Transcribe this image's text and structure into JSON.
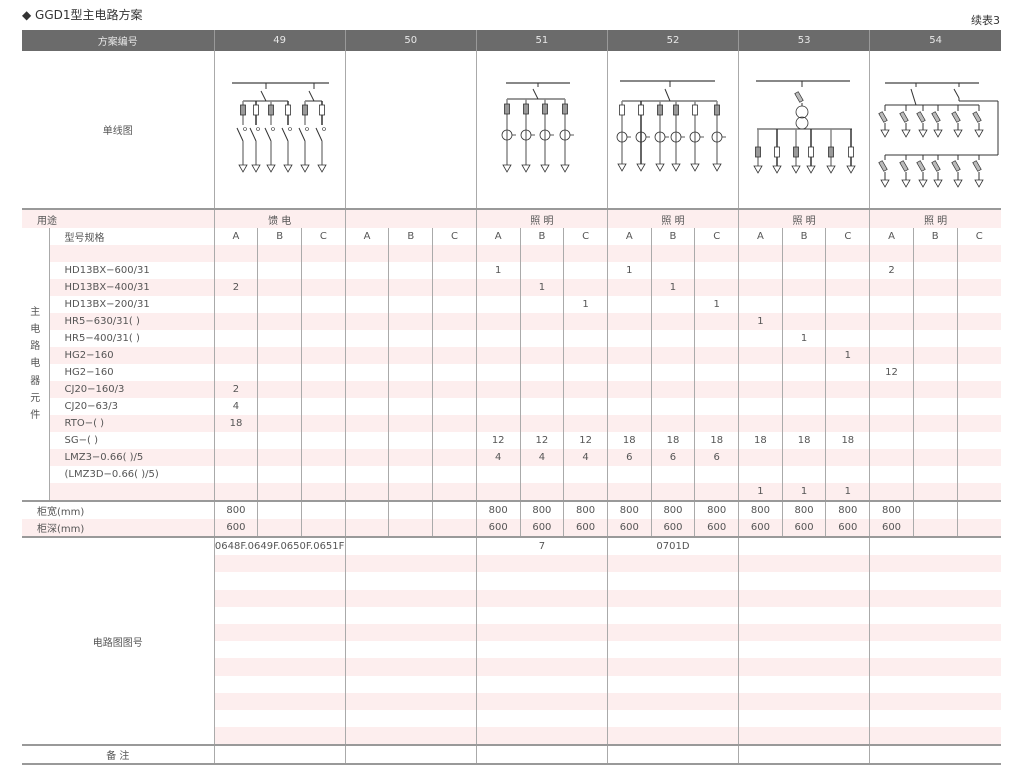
{
  "page": {
    "title": "◆ GGD1型主电路方案",
    "continued": "续表3"
  },
  "labels": {
    "scheme_no": "方案编号",
    "single_line": "单线图",
    "usage": "用途",
    "model_spec": "型号规格",
    "side_group": "主电路电器元件",
    "drawing_no": "电路图图号",
    "remarks": "备 注"
  },
  "schemes": [
    "49",
    "50",
    "51",
    "52",
    "53",
    "54"
  ],
  "usage": [
    "馈 电",
    "",
    "照 明",
    "照 明",
    "照 明",
    "照 明"
  ],
  "sub_columns": [
    "A",
    "B",
    "C"
  ],
  "components": [
    {
      "name": "",
      "values": [
        "",
        "",
        "",
        "",
        "",
        "",
        "",
        "",
        "",
        "",
        "",
        "",
        "",
        "",
        "",
        "",
        "",
        ""
      ]
    },
    {
      "name": "HD13BX−600/31",
      "values": [
        "",
        "",
        "",
        "",
        "",
        "",
        "1",
        "",
        "",
        "1",
        "",
        "",
        "",
        "",
        "",
        "2",
        "",
        ""
      ]
    },
    {
      "name": "HD13BX−400/31",
      "values": [
        "2",
        "",
        "",
        "",
        "",
        "",
        "",
        "1",
        "",
        "",
        "1",
        "",
        "",
        "",
        "",
        "",
        "",
        ""
      ]
    },
    {
      "name": "HD13BX−200/31",
      "values": [
        "",
        "",
        "",
        "",
        "",
        "",
        "",
        "",
        "1",
        "",
        "",
        "1",
        "",
        "",
        "",
        "",
        "",
        ""
      ]
    },
    {
      "name": "HR5−630/31( )",
      "values": [
        "",
        "",
        "",
        "",
        "",
        "",
        "",
        "",
        "",
        "",
        "",
        "",
        "1",
        "",
        "",
        "",
        "",
        ""
      ]
    },
    {
      "name": "HR5−400/31( )",
      "values": [
        "",
        "",
        "",
        "",
        "",
        "",
        "",
        "",
        "",
        "",
        "",
        "",
        "",
        "1",
        "",
        "",
        "",
        ""
      ]
    },
    {
      "name": "HG2−160",
      "values": [
        "",
        "",
        "",
        "",
        "",
        "",
        "",
        "",
        "",
        "",
        "",
        "",
        "",
        "",
        "1",
        "",
        "",
        ""
      ]
    },
    {
      "name": "HG2−160",
      "values": [
        "",
        "",
        "",
        "",
        "",
        "",
        "",
        "",
        "",
        "",
        "",
        "",
        "",
        "",
        "",
        "12",
        "",
        ""
      ]
    },
    {
      "name": "CJ20−160/3",
      "values": [
        "2",
        "",
        "",
        "",
        "",
        "",
        "",
        "",
        "",
        "",
        "",
        "",
        "",
        "",
        "",
        "",
        "",
        ""
      ]
    },
    {
      "name": "CJ20−63/3",
      "values": [
        "4",
        "",
        "",
        "",
        "",
        "",
        "",
        "",
        "",
        "",
        "",
        "",
        "",
        "",
        "",
        "",
        "",
        ""
      ]
    },
    {
      "name": "RTO−( )",
      "values": [
        "18",
        "",
        "",
        "",
        "",
        "",
        "",
        "",
        "",
        "",
        "",
        "",
        "",
        "",
        "",
        "",
        "",
        ""
      ]
    },
    {
      "name": "SG−( )",
      "values": [
        "",
        "",
        "",
        "",
        "",
        "",
        "12",
        "12",
        "12",
        "18",
        "18",
        "18",
        "18",
        "18",
        "18",
        "",
        "",
        ""
      ]
    },
    {
      "name": "LMZ3−0.66( )/5",
      "values": [
        "",
        "",
        "",
        "",
        "",
        "",
        "4",
        "4",
        "4",
        "6",
        "6",
        "6",
        "",
        "",
        "",
        "",
        "",
        ""
      ]
    },
    {
      "name": "(LMZ3D−0.66( )/5)",
      "values": [
        "",
        "",
        "",
        "",
        "",
        "",
        "",
        "",
        "",
        "",
        "",
        "",
        "",
        "",
        "",
        "",
        "",
        ""
      ]
    },
    {
      "name": "",
      "values": [
        "",
        "",
        "",
        "",
        "",
        "",
        "",
        "",
        "",
        "",
        "",
        "",
        "1",
        "1",
        "1",
        "",
        "",
        ""
      ]
    }
  ],
  "dimensions": [
    {
      "name": "柜宽(mm)",
      "values": [
        "800",
        "",
        "",
        "",
        "",
        "",
        "800",
        "800",
        "800",
        "800",
        "800",
        "800",
        "800",
        "800",
        "800",
        "800",
        "",
        ""
      ]
    },
    {
      "name": "柜深(mm)",
      "values": [
        "600",
        "",
        "",
        "",
        "",
        "",
        "600",
        "600",
        "600",
        "600",
        "600",
        "600",
        "600",
        "600",
        "600",
        "600",
        "",
        ""
      ]
    }
  ],
  "drawing_numbers": [
    "0648F.0649F.0650F.0651F",
    "",
    "7",
    "0701D",
    "",
    ""
  ],
  "colors": {
    "header_bg": "#6b6b6b",
    "stripe": "#fdeeee",
    "rule": "#999999"
  }
}
